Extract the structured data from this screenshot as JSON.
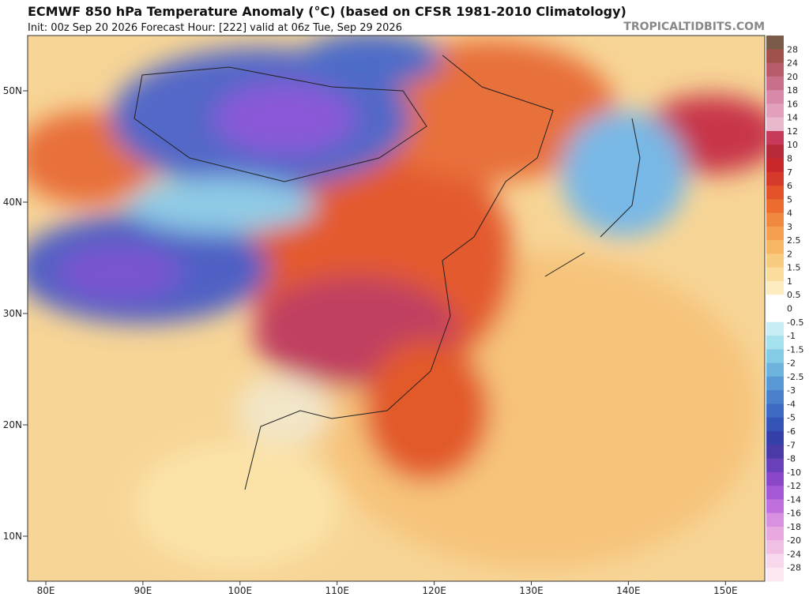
{
  "header": {
    "title": "ECMWF 850 hPa Temperature Anomaly (°C) (based on CFSR 1981-2010 Climatology)",
    "subtitle": "Init: 00z Sep 20 2026   Forecast Hour: [222]   valid at 06z Tue, Sep 29 2026",
    "site": "TROPICALTIDBITS.COM"
  },
  "map": {
    "lat_labels": [
      "50N",
      "40N",
      "30N",
      "20N",
      "10N"
    ],
    "lon_labels": [
      "80E",
      "90E",
      "100E",
      "110E",
      "120E",
      "130E",
      "140E",
      "150E"
    ]
  },
  "colorbar": {
    "labels": [
      "28",
      "24",
      "20",
      "18",
      "16",
      "14",
      "12",
      "10",
      "8",
      "7",
      "6",
      "5",
      "4",
      "3",
      "2.5",
      "2",
      "1.5",
      "1",
      "0.5",
      "0",
      "-0.5",
      "-1",
      "-1.5",
      "-2",
      "-2.5",
      "-3",
      "-4",
      "-5",
      "-6",
      "-7",
      "-8",
      "-10",
      "-12",
      "-14",
      "-16",
      "-18",
      "-20",
      "-24",
      "-28"
    ]
  }
}
